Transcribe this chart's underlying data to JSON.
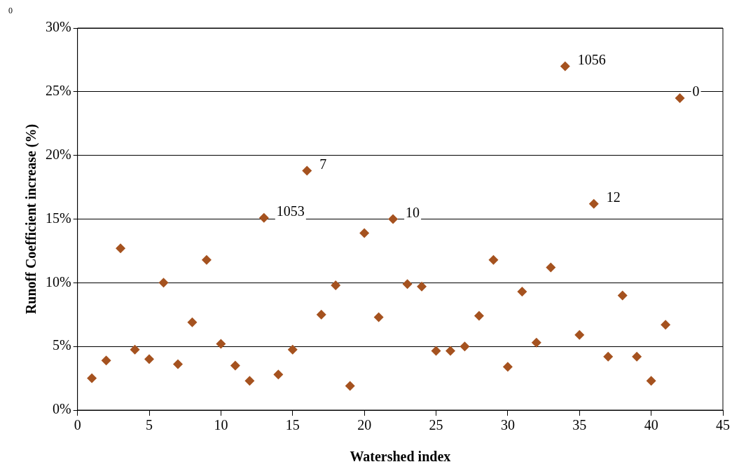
{
  "chart_data": {
    "type": "scatter",
    "xlabel": "Watershed index",
    "ylabel": "Runoff Coefficient increase (%)",
    "x": [
      1,
      2,
      3,
      4,
      5,
      6,
      7,
      8,
      9,
      10,
      11,
      12,
      13,
      14,
      15,
      16,
      17,
      18,
      19,
      20,
      21,
      22,
      23,
      24,
      25,
      26,
      27,
      28,
      29,
      30,
      31,
      32,
      33,
      34,
      35,
      36,
      37,
      38,
      39,
      40,
      41,
      42
    ],
    "series": [
      {
        "color": "#a5521f",
        "values": [
          2.5,
          3.9,
          12.7,
          4.75,
          4.0,
          10.0,
          3.6,
          6.9,
          11.8,
          5.2,
          3.5,
          2.3,
          15.1,
          2.8,
          4.75,
          18.8,
          7.5,
          9.8,
          1.9,
          13.9,
          7.3,
          15.0,
          9.9,
          9.7,
          4.65,
          4.65,
          5.0,
          7.4,
          11.8,
          3.4,
          9.3,
          5.3,
          11.2,
          27.0,
          5.9,
          16.2,
          4.2,
          9.0,
          4.2,
          2.3,
          6.7,
          24.5
        ]
      }
    ],
    "xlim": [
      0,
      45
    ],
    "xticks": [
      0,
      5,
      10,
      15,
      20,
      25,
      30,
      35,
      40,
      45
    ],
    "ylim": [
      0,
      30
    ],
    "yticks": [
      {
        "value": 0,
        "label": "0%"
      },
      {
        "value": 5,
        "label": "5%"
      },
      {
        "value": 10,
        "label": "10%"
      },
      {
        "value": 15,
        "label": "15%"
      },
      {
        "value": 20,
        "label": "20%"
      },
      {
        "value": 25,
        "label": "25%"
      },
      {
        "value": 30,
        "label": "30%"
      }
    ],
    "grid": "y",
    "legend": false,
    "marker": "diamond",
    "annotations": [
      "0",
      {
        "text": "1053",
        "x": 13,
        "y": 15.1
      },
      {
        "text": "7",
        "x": 16,
        "y": 18.8
      },
      {
        "text": "10",
        "x": 22,
        "y": 15.0
      },
      {
        "text": "1056",
        "x": 34,
        "y": 27.0
      },
      {
        "text": "12",
        "x": 36,
        "y": 16.2
      },
      {
        "text": "0",
        "x": 42,
        "y": 24.5
      }
    ]
  }
}
